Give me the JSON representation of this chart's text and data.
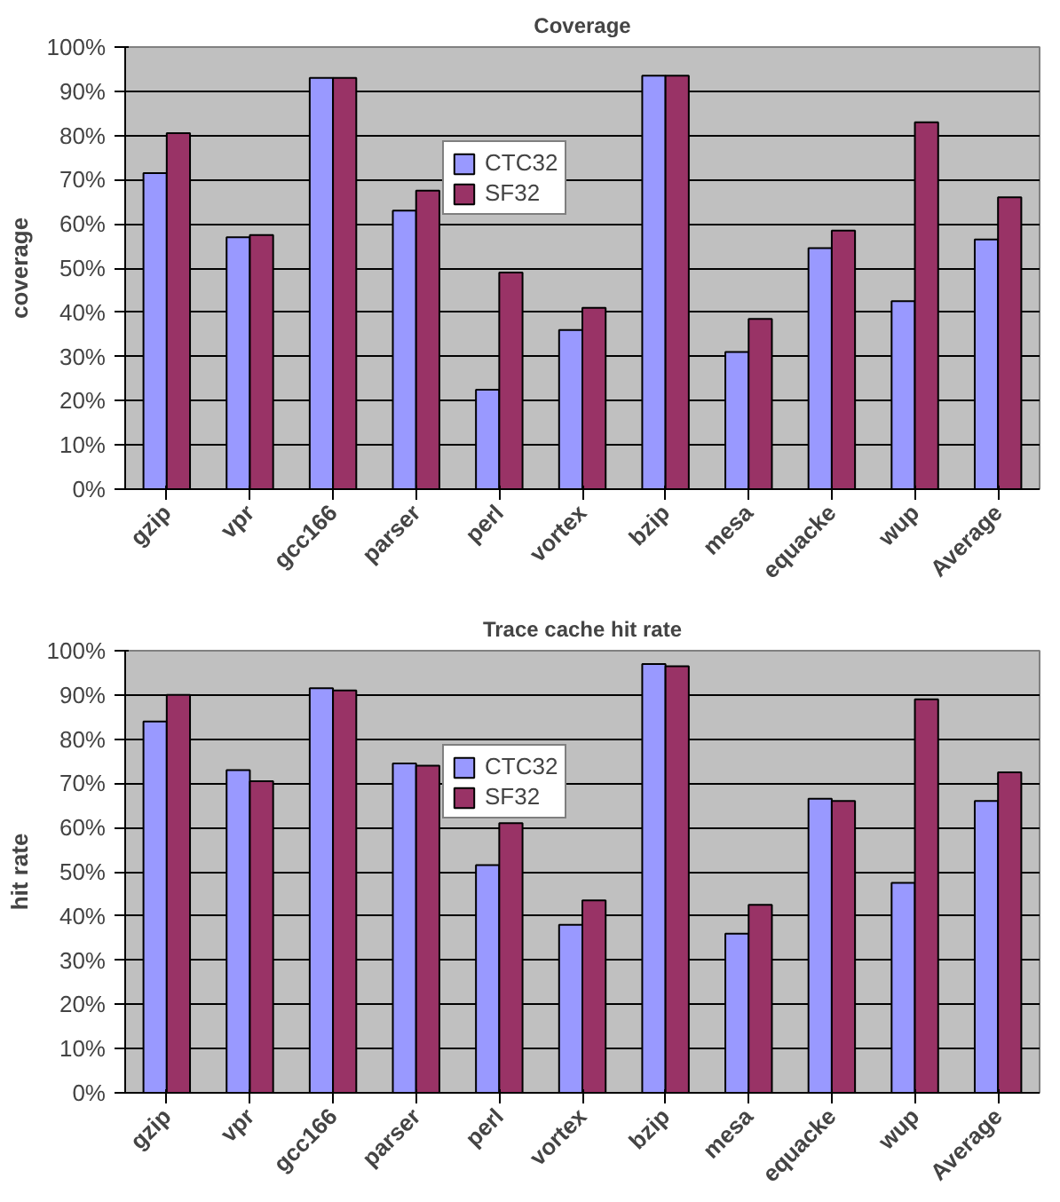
{
  "chart_data": [
    {
      "type": "bar",
      "title": "Coverage",
      "ylabel": "coverage",
      "categories": [
        "gzip",
        "vpr",
        "gcc166",
        "parser",
        "perl",
        "vortex",
        "bzip",
        "mesa",
        "equacke",
        "wup",
        "Average"
      ],
      "series": [
        {
          "name": "CTC32",
          "color": "#9999ff",
          "values": [
            71.5,
            57,
            93,
            63,
            22.5,
            36,
            93.5,
            31,
            54.5,
            42.5,
            56.5
          ]
        },
        {
          "name": "SF32",
          "color": "#993366",
          "values": [
            80.5,
            57.5,
            93,
            67.5,
            49,
            41,
            93.5,
            38.5,
            58.5,
            83,
            66
          ]
        }
      ],
      "ylim": [
        0,
        100
      ],
      "yticks": [
        {
          "value": 0,
          "label": "0%"
        },
        {
          "value": 10,
          "label": "10%"
        },
        {
          "value": 20,
          "label": "20%"
        },
        {
          "value": 30,
          "label": "30%"
        },
        {
          "value": 40,
          "label": "40%"
        },
        {
          "value": 50,
          "label": "50%"
        },
        {
          "value": 60,
          "label": "60%"
        },
        {
          "value": 70,
          "label": "70%"
        },
        {
          "value": 80,
          "label": "80%"
        },
        {
          "value": 90,
          "label": "90%"
        },
        {
          "value": 100,
          "label": "100%"
        }
      ],
      "grid": "y",
      "legend": "top"
    },
    {
      "type": "bar",
      "title": "Trace cache hit rate",
      "ylabel": "hit rate",
      "categories": [
        "gzip",
        "vpr",
        "gcc166",
        "parser",
        "perl",
        "vortex",
        "bzip",
        "mesa",
        "equacke",
        "wup",
        "Average"
      ],
      "series": [
        {
          "name": "CTC32",
          "color": "#9999ff",
          "values": [
            84,
            73,
            91.5,
            74.5,
            51.5,
            38,
            97,
            36,
            66.5,
            47.5,
            66
          ]
        },
        {
          "name": "SF32",
          "color": "#993366",
          "values": [
            90,
            70.5,
            91,
            74,
            61,
            43.5,
            96.5,
            42.5,
            66,
            89,
            72.5
          ]
        }
      ],
      "ylim": [
        0,
        100
      ],
      "yticks": [
        {
          "value": 0,
          "label": "0%"
        },
        {
          "value": 10,
          "label": "10%"
        },
        {
          "value": 20,
          "label": "20%"
        },
        {
          "value": 30,
          "label": "30%"
        },
        {
          "value": 40,
          "label": "40%"
        },
        {
          "value": 50,
          "label": "50%"
        },
        {
          "value": 60,
          "label": "60%"
        },
        {
          "value": 70,
          "label": "70%"
        },
        {
          "value": 80,
          "label": "80%"
        },
        {
          "value": 90,
          "label": "90%"
        },
        {
          "value": 100,
          "label": "100%"
        }
      ],
      "grid": "y",
      "legend": "top"
    }
  ]
}
